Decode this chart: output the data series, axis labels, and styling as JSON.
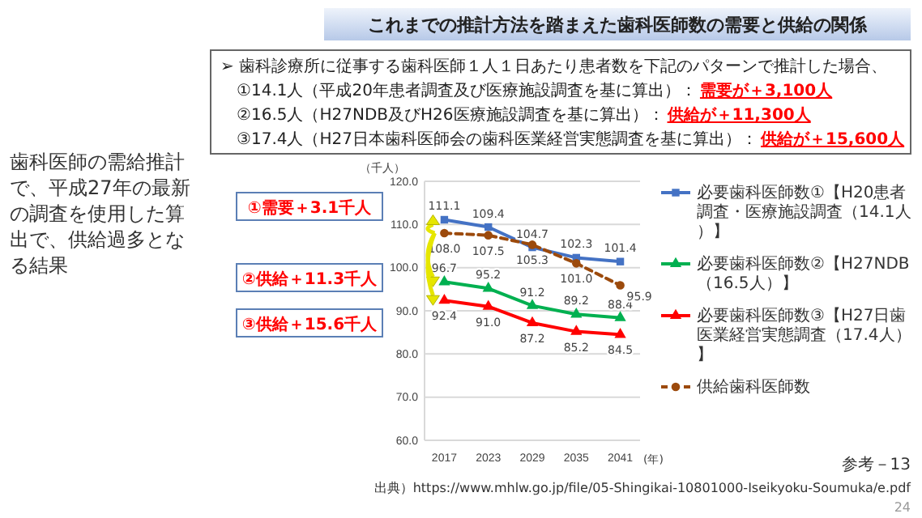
{
  "chart_data": {
    "type": "line",
    "title": "これまでの推計方法を踏まえた歯科医師数の需要と供給の関係",
    "categories": [
      "2017",
      "2023",
      "2029",
      "2035",
      "2041"
    ],
    "series": [
      {
        "name": "必要歯科医師数①【H20患者調査・医療施設調査（14.1人）】",
        "color": "#4472c4",
        "values": [
          111.1,
          109.4,
          104.7,
          102.3,
          101.4
        ],
        "value_labels": [
          "111.1",
          "109.4",
          "104.7",
          "102.3",
          "101.4"
        ],
        "marker": "square",
        "line_style": "solid"
      },
      {
        "name": "必要歯科医師数②【H27NDB（16.5人）】",
        "color": "#00b050",
        "values": [
          96.7,
          95.2,
          91.2,
          89.2,
          88.4
        ],
        "value_labels": [
          "96.7",
          "95.2",
          "91.2",
          "89.2",
          "88.4"
        ],
        "marker": "triangle",
        "line_style": "solid"
      },
      {
        "name": "必要歯科医師数③【H27日歯医業経営実態調査（17.4人）】",
        "color": "#ff0000",
        "values": [
          92.4,
          91.0,
          87.2,
          85.2,
          84.5
        ],
        "value_labels": [
          "92.4",
          "91.0",
          "87.2",
          "85.2",
          "84.5"
        ],
        "marker": "triangle",
        "line_style": "solid"
      },
      {
        "name": "供給歯科医師数",
        "color": "#9c4a0c",
        "values": [
          108.0,
          107.5,
          105.3,
          101.0,
          95.9
        ],
        "value_labels": [
          "108.0",
          "107.5",
          "105.3",
          "101.0",
          "95.9"
        ],
        "marker": "circle",
        "line_style": "dashed"
      }
    ],
    "ylim": [
      60,
      120
    ],
    "yticks": [
      {
        "value": 60,
        "label": "60.0"
      },
      {
        "value": 70,
        "label": "70.0"
      },
      {
        "value": 80,
        "label": "80.0"
      },
      {
        "value": 90,
        "label": "90.0"
      },
      {
        "value": 100,
        "label": "100.0"
      },
      {
        "value": 110,
        "label": "110.0"
      },
      {
        "value": 120,
        "label": "120.0"
      }
    ],
    "ylabel": "（千人）",
    "xlabel": "(年)",
    "grid": "y",
    "legend": "right",
    "annotations": [
      "➢ 歯科診療所に従事する歯科医師１人１日あたり患者数を下記のパターンで推計した場合、",
      "①14.1人（平成20年患者調査及び医療施設調査を基に算出）：",
      "②16.5人（H27NDB及びH26医療施設調査を基に算出）：",
      "③17.4人（H27日本歯科医師会の歯科医業経営実態調査を基に算出）：",
      "需要が＋3,100人",
      "供給が＋11,300人",
      "供給が＋15,600人",
      "歯科医師の需給推計で、平成27年の最新の調査を使用した算出で、供給過多となる結果",
      "①需要＋3.1千人",
      "②供給＋11.3千人",
      "③供給＋15.6千人",
      "出典）https://www.mhlw.go.jp/file/05-Shingikai-10801000-Iseikyoku-Soumuka/e.pdf",
      "参考－13",
      "24"
    ]
  }
}
